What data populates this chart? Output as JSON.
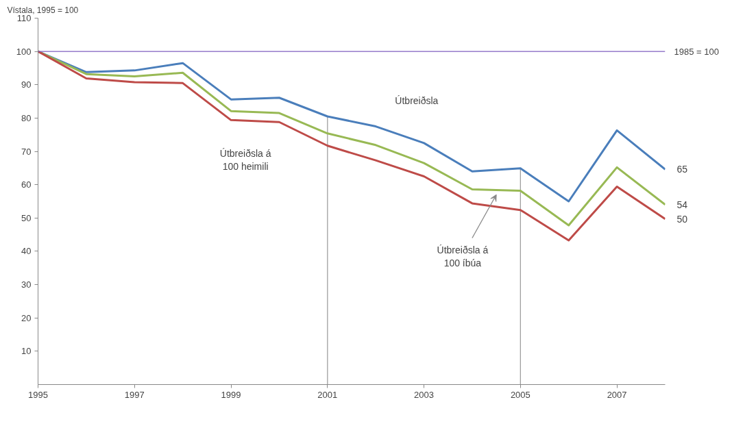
{
  "chart_data": {
    "type": "line",
    "ylabel": "Vístala, 1995 = 100",
    "x": [
      1995,
      1996,
      1997,
      1998,
      1999,
      2000,
      2001,
      2002,
      2003,
      2004,
      2005,
      2006,
      2007,
      2008
    ],
    "series": [
      {
        "name": "Útbreiðsla",
        "color": "#4a7ebb",
        "values": [
          100,
          93.8,
          94.3,
          96.5,
          85.6,
          86.1,
          80.5,
          77.5,
          72.5,
          64.0,
          64.9,
          55.0,
          76.3,
          64.6
        ],
        "value_labels": [
          null,
          null,
          null,
          null,
          null,
          null,
          null,
          null,
          null,
          null,
          null,
          null,
          null,
          "65"
        ]
      },
      {
        "color": "#98b954",
        "values": [
          100,
          93.2,
          92.5,
          93.6,
          82.1,
          81.5,
          75.4,
          71.9,
          66.5,
          58.6,
          58.2,
          47.8,
          65.2,
          54.0
        ],
        "value_labels": [
          null,
          null,
          null,
          null,
          null,
          null,
          null,
          null,
          null,
          null,
          null,
          null,
          null,
          "54"
        ]
      },
      {
        "color": "#be4b48",
        "values": [
          100,
          91.9,
          90.8,
          90.5,
          79.4,
          78.8,
          71.7,
          67.3,
          62.5,
          54.4,
          52.4,
          43.3,
          59.4,
          49.7
        ],
        "value_labels": [
          null,
          null,
          null,
          null,
          null,
          null,
          null,
          null,
          null,
          null,
          null,
          null,
          null,
          "50"
        ]
      }
    ],
    "annotations": [
      "Útbreiðsla á\n100 heimili",
      "Útbreiðsla á\n100 íbúa"
    ],
    "ref_lines": [
      {
        "axis": "y",
        "value": 100,
        "label": "1985 = 100",
        "color": "#7f5fbf"
      },
      {
        "axis": "x",
        "value": 2001,
        "color": "#a0a0a0"
      },
      {
        "axis": "x",
        "value": 2005,
        "color": "#a0a0a0"
      }
    ],
    "xlim": [
      1995,
      2008
    ],
    "xticks": [
      1995,
      1997,
      1999,
      2001,
      2003,
      2005,
      2007
    ],
    "ylim": [
      0,
      110
    ],
    "yticks": [
      10,
      20,
      30,
      40,
      50,
      60,
      70,
      80,
      90,
      100,
      110
    ],
    "grid": false,
    "marker": "none",
    "line_style": "solid"
  }
}
